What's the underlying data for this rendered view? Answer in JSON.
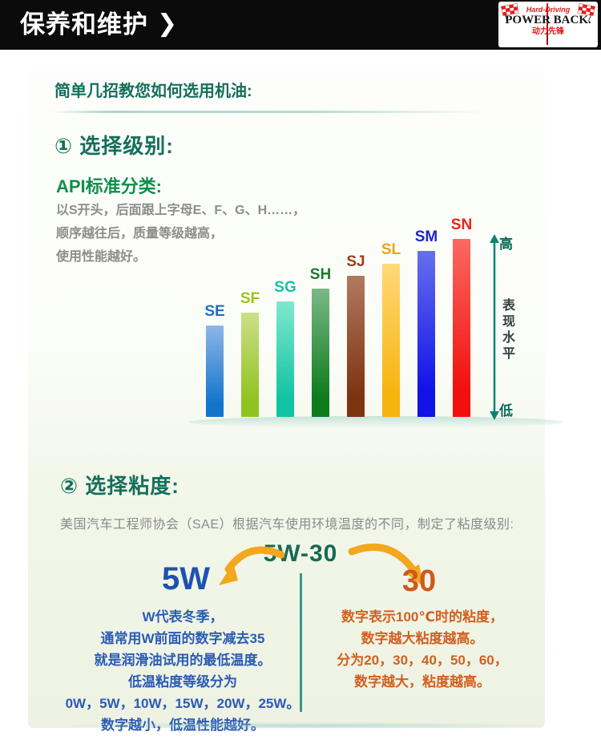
{
  "header": {
    "title": "保养和维护",
    "chevron": "❯",
    "logo": {
      "tagline": "Hard-Driving",
      "brand": "POWER BACK.",
      "cn": "动力先锋"
    }
  },
  "section1": {
    "intro_title": "简单几招教您如何选用机油:",
    "heading": "① 选择级别:",
    "api_title": "API标准分类:",
    "api_lines": [
      "以S开头，后面跟上字母E、F、G、H……，",
      "顺序越往后，质量等级越高，",
      "使用性能越好。"
    ]
  },
  "chart_data": {
    "type": "bar",
    "categories": [
      "SE",
      "SF",
      "SG",
      "SH",
      "SJ",
      "SL",
      "SM",
      "SN"
    ],
    "values": [
      114,
      130,
      144,
      160,
      176,
      191,
      207,
      222
    ],
    "value_note": "unlabeled qualitative axis — bar heights in px, performance rises from SE to SN",
    "ylabel": "表现水平",
    "axis_high_label": "高",
    "axis_low_label": "低",
    "colors_top": [
      "#8fb6e6",
      "#cbe088",
      "#7fe8cd",
      "#7cb888",
      "#b07a60",
      "#ffd977",
      "#6670ec",
      "#fa6a60"
    ],
    "colors_bottom": [
      "#1374cc",
      "#8fc31f",
      "#10c3a2",
      "#0c7c1c",
      "#7e3310",
      "#f6b40e",
      "#1111e8",
      "#f2100e"
    ],
    "label_colors": [
      "#1c6fc4",
      "#9cc319",
      "#16c2a0",
      "#1d7a2e",
      "#9a3c16",
      "#eaa317",
      "#2024cc",
      "#ee2018"
    ],
    "legend": "none",
    "grid": "off"
  },
  "section2": {
    "heading": "② 选择粘度:",
    "desc": "美国汽车工程师协会（SAE）根据汽车使用环境温度的不同，制定了粘度级别:",
    "combo": "5W-30",
    "left": {
      "title": "5W",
      "lines": [
        "W代表冬季，",
        "通常用W前面的数字减去35",
        "就是润滑油试用的最低温度。",
        "低温粘度等级分为",
        "0W，5W，10W，15W，20W，25W。",
        "数字越小，低温性能越好。"
      ]
    },
    "right": {
      "title": "30",
      "lines": [
        "数字表示100℃时的粘度，",
        "数字越大粘度越高。",
        "分为20，30，40，50，60，",
        "数字越大，粘度越高。"
      ]
    }
  },
  "colors": {
    "header_bg": "#0b0b0b",
    "heading_teal": "#156f5c",
    "api_green": "#0f8f4a",
    "body_gray": "#8c8c8c",
    "axis_teal": "#0c8474",
    "combo_green": "#166b54",
    "left_blue": "#2b5bb5",
    "right_orange": "#d2601f",
    "swoosh_orange": "#f2a71d",
    "logo_red": "#e01818"
  }
}
